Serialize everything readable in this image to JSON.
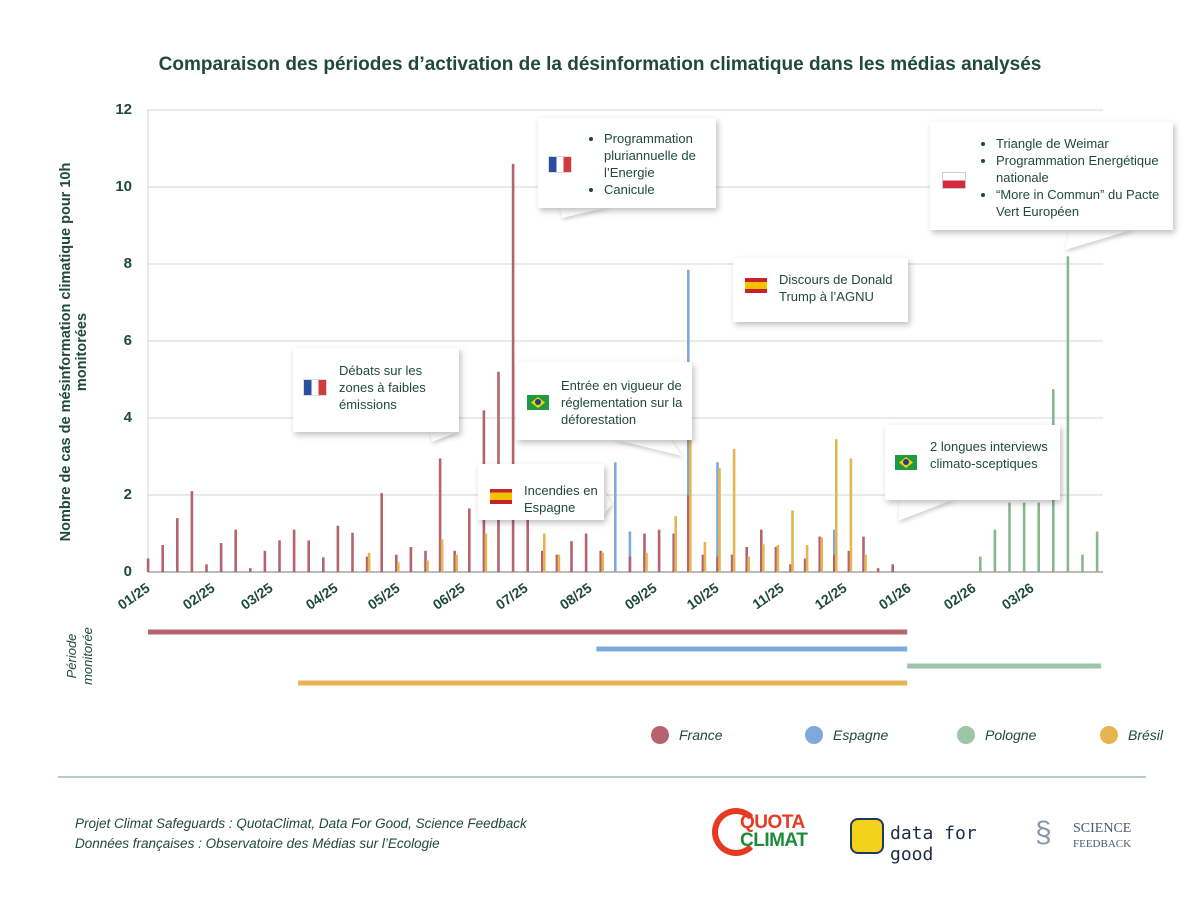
{
  "chart_data": {
    "type": "bar",
    "title": "Comparaison des périodes d’activation de la désinformation climatique dans les médias analysés",
    "ylabel": "Nombre de cas de mésinformation climatique pour 10h monitorées",
    "xlabel": "",
    "ylim": [
      0,
      12
    ],
    "yticks": [
      "0",
      "2",
      "4",
      "6",
      "8",
      "10",
      "12"
    ],
    "xticks": [
      "01/25",
      "02/25",
      "03/25",
      "04/25",
      "05/25",
      "06/25",
      "07/25",
      "08/25",
      "09/25",
      "10/25",
      "11/25",
      "12/25",
      "01/26",
      "02/26",
      "03/26"
    ],
    "grid": true,
    "legend_position": "bottom",
    "series": [
      {
        "name": "France",
        "color": "#b5636e",
        "points": [
          [
            "2025-01-01",
            0.35
          ],
          [
            "2025-01-08",
            0.7
          ],
          [
            "2025-01-15",
            1.4
          ],
          [
            "2025-01-22",
            2.1
          ],
          [
            "2025-01-29",
            0.2
          ],
          [
            "2025-02-05",
            0.75
          ],
          [
            "2025-02-12",
            1.1
          ],
          [
            "2025-02-19",
            0.1
          ],
          [
            "2025-02-26",
            0.55
          ],
          [
            "2025-03-05",
            0.82
          ],
          [
            "2025-03-12",
            1.1
          ],
          [
            "2025-03-19",
            0.82
          ],
          [
            "2025-03-26",
            0.38
          ],
          [
            "2025-04-02",
            1.2
          ],
          [
            "2025-04-09",
            1.02
          ],
          [
            "2025-04-16",
            0.4
          ],
          [
            "2025-04-23",
            2.05
          ],
          [
            "2025-04-30",
            0.45
          ],
          [
            "2025-05-07",
            0.65
          ],
          [
            "2025-05-14",
            0.55
          ],
          [
            "2025-05-21",
            2.95
          ],
          [
            "2025-05-28",
            0.55
          ],
          [
            "2025-06-04",
            1.65
          ],
          [
            "2025-06-11",
            4.2
          ],
          [
            "2025-06-18",
            5.2
          ],
          [
            "2025-06-25",
            10.6
          ],
          [
            "2025-07-02",
            2.0
          ],
          [
            "2025-07-09",
            0.55
          ],
          [
            "2025-07-16",
            0.45
          ],
          [
            "2025-07-23",
            0.8
          ],
          [
            "2025-07-30",
            1.0
          ],
          [
            "2025-08-06",
            0.55
          ],
          [
            "2025-08-20",
            0.4
          ],
          [
            "2025-08-27",
            1.0
          ],
          [
            "2025-09-03",
            1.1
          ],
          [
            "2025-09-10",
            1.0
          ],
          [
            "2025-09-17",
            2.0
          ],
          [
            "2025-09-24",
            0.45
          ],
          [
            "2025-10-01",
            0.4
          ],
          [
            "2025-10-08",
            0.45
          ],
          [
            "2025-10-15",
            0.65
          ],
          [
            "2025-10-22",
            1.1
          ],
          [
            "2025-10-29",
            0.65
          ],
          [
            "2025-11-05",
            0.2
          ],
          [
            "2025-11-12",
            0.35
          ],
          [
            "2025-11-19",
            0.92
          ],
          [
            "2025-11-26",
            0.45
          ],
          [
            "2025-12-03",
            0.55
          ],
          [
            "2025-12-10",
            0.92
          ],
          [
            "2025-12-17",
            0.1
          ],
          [
            "2025-12-24",
            0.2
          ]
        ]
      },
      {
        "name": "Espagne",
        "color": "#7fa8dc",
        "points": [
          [
            "2025-08-13",
            2.85
          ],
          [
            "2025-08-20",
            1.05
          ],
          [
            "2025-08-27",
            0.5
          ],
          [
            "2025-09-17",
            7.85
          ],
          [
            "2025-10-01",
            2.85
          ],
          [
            "2025-10-22",
            0.6
          ],
          [
            "2025-11-26",
            1.1
          ]
        ]
      },
      {
        "name": "Pologne",
        "color": "#86b890",
        "points": [
          [
            "2026-02-04",
            0.4
          ],
          [
            "2026-02-11",
            1.1
          ],
          [
            "2026-02-18",
            1.8
          ],
          [
            "2026-02-25",
            1.8
          ],
          [
            "2026-03-04",
            1.8
          ],
          [
            "2026-03-11",
            4.75
          ],
          [
            "2026-03-18",
            8.2
          ],
          [
            "2026-03-25",
            0.45
          ],
          [
            "2026-04-01",
            1.05
          ]
        ]
      },
      {
        "name": "Brésil",
        "color": "#e6b450",
        "points": [
          [
            "2025-04-16",
            0.5
          ],
          [
            "2025-04-30",
            0.25
          ],
          [
            "2025-05-14",
            0.3
          ],
          [
            "2025-05-21",
            0.85
          ],
          [
            "2025-05-28",
            0.45
          ],
          [
            "2025-06-11",
            1.0
          ],
          [
            "2025-07-09",
            1.0
          ],
          [
            "2025-07-16",
            0.45
          ],
          [
            "2025-08-06",
            0.5
          ],
          [
            "2025-08-27",
            0.5
          ],
          [
            "2025-09-10",
            1.45
          ],
          [
            "2025-09-17",
            3.45
          ],
          [
            "2025-09-24",
            0.78
          ],
          [
            "2025-10-01",
            2.7
          ],
          [
            "2025-10-08",
            3.2
          ],
          [
            "2025-10-15",
            0.4
          ],
          [
            "2025-10-22",
            0.72
          ],
          [
            "2025-10-29",
            0.7
          ],
          [
            "2025-11-05",
            1.6
          ],
          [
            "2025-11-12",
            0.7
          ],
          [
            "2025-11-19",
            0.9
          ],
          [
            "2025-11-26",
            3.45
          ],
          [
            "2025-12-03",
            2.95
          ],
          [
            "2025-12-10",
            0.45
          ]
        ]
      }
    ],
    "periods": [
      {
        "name": "France",
        "start": "2025-01-01",
        "end": "2025-12-31"
      },
      {
        "name": "Espagne",
        "start": "2025-08-04",
        "end": "2025-12-31"
      },
      {
        "name": "Pologne",
        "start": "2025-12-31",
        "end": "2026-04-03"
      },
      {
        "name": "Brésil",
        "start": "2025-03-14",
        "end": "2025-12-31"
      }
    ],
    "period_label": "Période monitorée",
    "annotations": [
      {
        "flag": "france",
        "items": [
          "Programmation pluriannuelle de l’Energie",
          "Canicule"
        ]
      },
      {
        "flag": "poland",
        "items": [
          "Triangle de Weimar",
          "Programmation Energétique nationale",
          "“More in Commun” du Pacte Vert Européen"
        ]
      },
      {
        "flag": "spain",
        "text": "Discours de Donald Trump à l’AGNU"
      },
      {
        "flag": "france",
        "text": "Débats sur les zones à faibles émissions"
      },
      {
        "flag": "brazil",
        "text": "Entrée en vigueur de réglementation sur la déforestation"
      },
      {
        "flag": "spain",
        "text": "Incendies en Espagne"
      },
      {
        "flag": "brazil",
        "text": "2 longues interviews climato-sceptiques"
      }
    ]
  },
  "footer": {
    "line1": "Projet Climat Safeguards : QuotaClimat, Data For Good, Science Feedback",
    "line2": "Données françaises : Observatoire des Médias sur l’Ecologie",
    "logos": [
      "QUOTA CLIMAT",
      "data for good",
      "SCIENCE FEEDBACK"
    ]
  }
}
